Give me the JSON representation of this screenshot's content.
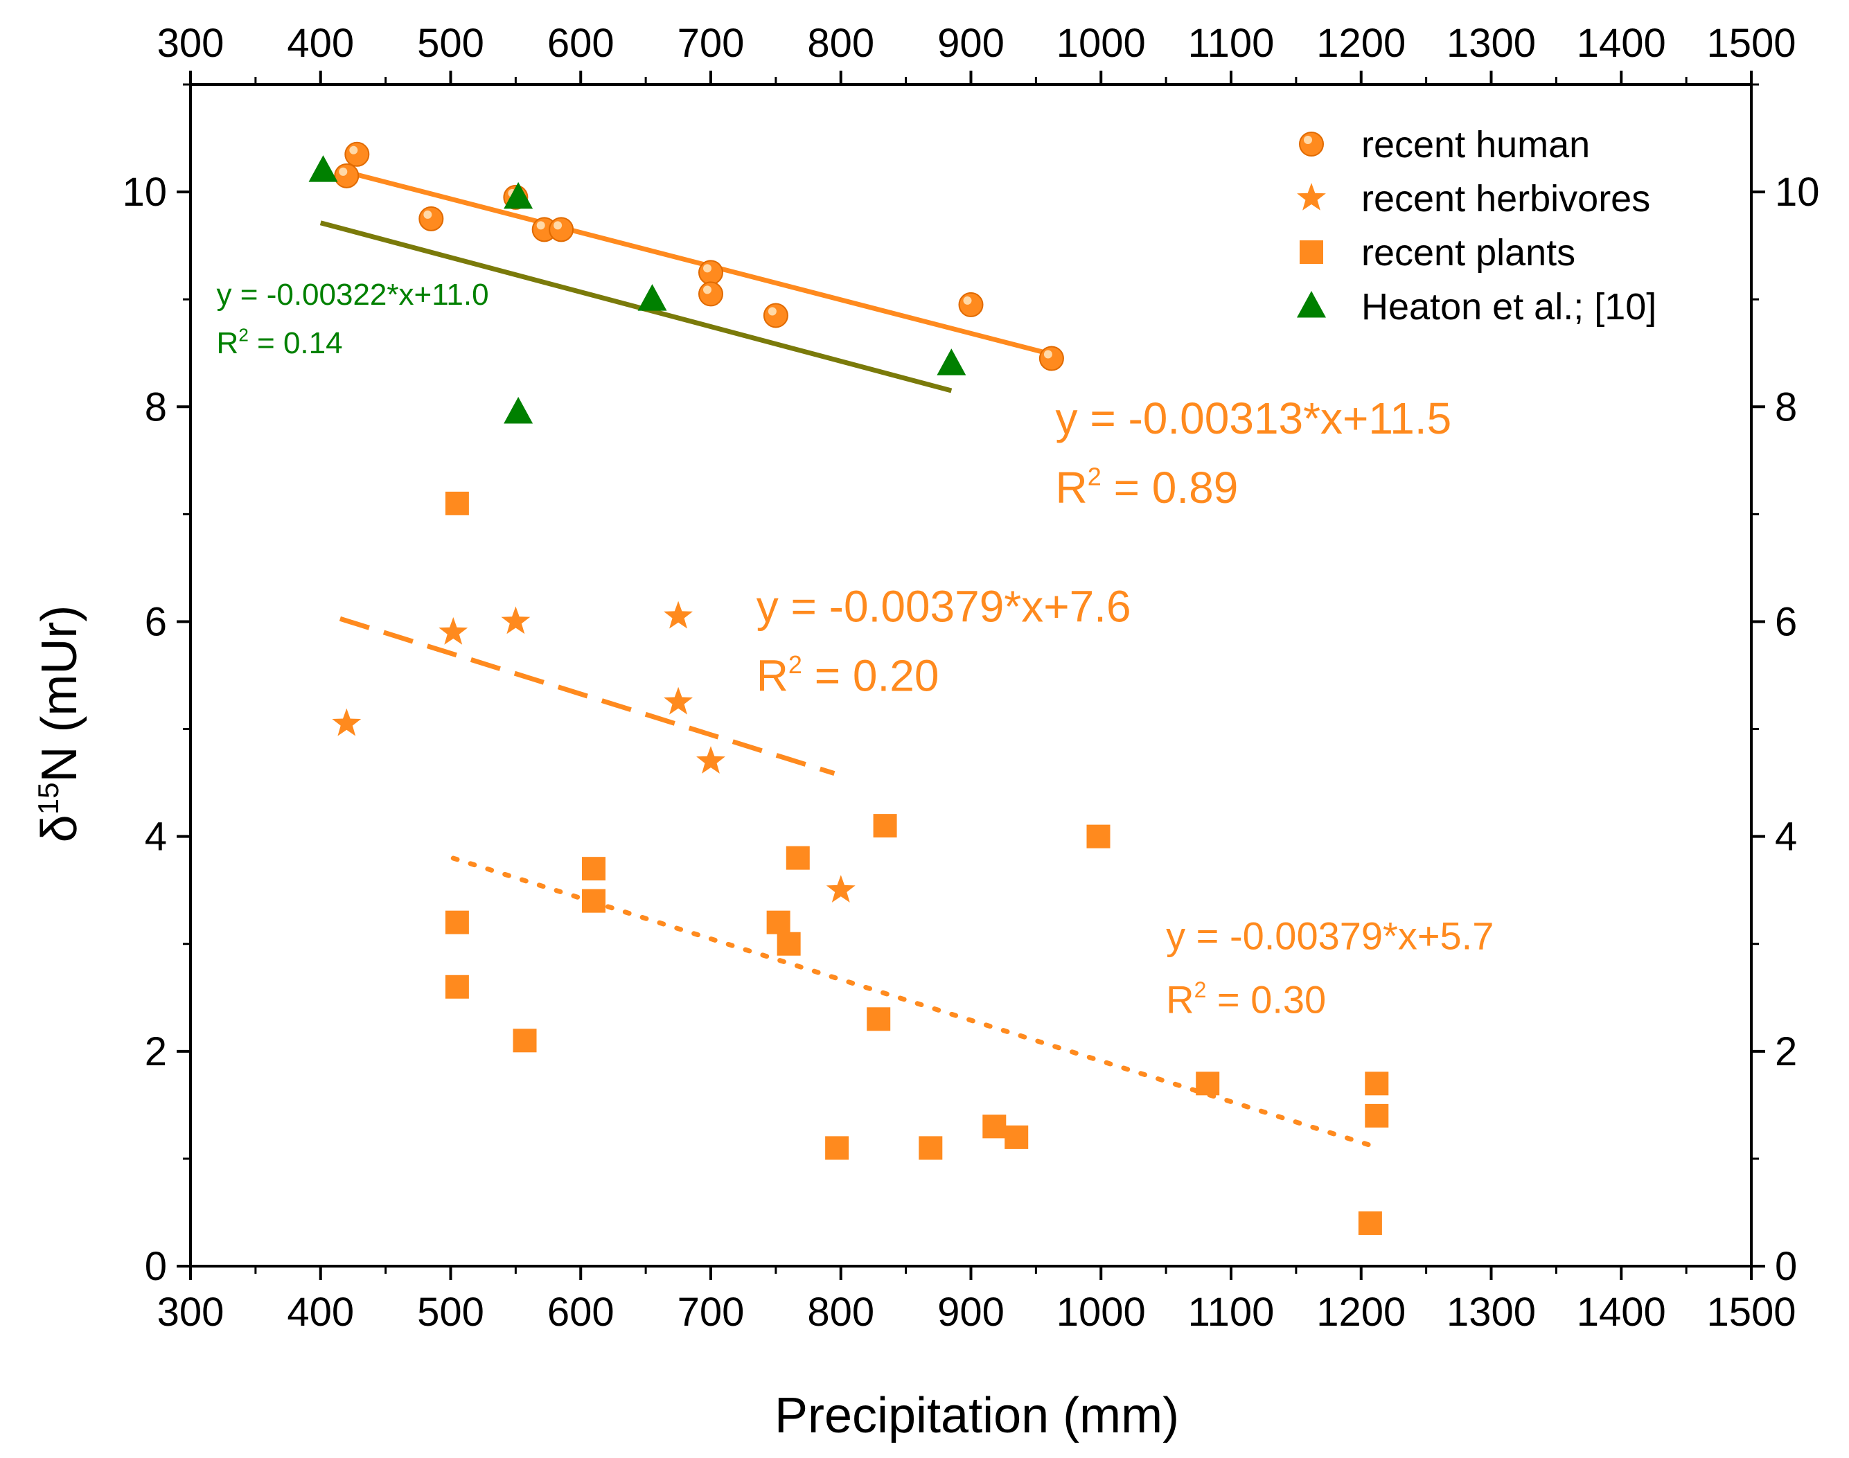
{
  "chart_data": {
    "type": "scatter",
    "xlabel": "Precipitation (mm)",
    "ylabel": {
      "main": "δ",
      "sup": "15",
      "rest": "N (mUr)"
    },
    "xlim": [
      300,
      1500
    ],
    "ylim": [
      0,
      11
    ],
    "x_ticks": [
      300,
      400,
      500,
      600,
      700,
      800,
      900,
      1000,
      1100,
      1200,
      1300,
      1400,
      1500
    ],
    "y_ticks": [
      0,
      2,
      4,
      6,
      8,
      10
    ],
    "legend_position": "top-right",
    "series": [
      {
        "name": "recent human",
        "marker": "circle",
        "color": "#FF8A1E",
        "points": [
          [
            420,
            10.15
          ],
          [
            428,
            10.35
          ],
          [
            485,
            9.75
          ],
          [
            550,
            9.95
          ],
          [
            572,
            9.65
          ],
          [
            585,
            9.65
          ],
          [
            700,
            9.25
          ],
          [
            700,
            9.05
          ],
          [
            750,
            8.85
          ],
          [
            900,
            8.95
          ],
          [
            962,
            8.45
          ]
        ]
      },
      {
        "name": "recent herbivores",
        "marker": "star",
        "color": "#FF8A1E",
        "points": [
          [
            420,
            5.05
          ],
          [
            502,
            5.9
          ],
          [
            550,
            6.0
          ],
          [
            675,
            6.05
          ],
          [
            675,
            5.25
          ],
          [
            700,
            4.7
          ],
          [
            800,
            3.5
          ]
        ]
      },
      {
        "name": "recent plants",
        "marker": "square",
        "color": "#FF8A1E",
        "points": [
          [
            505,
            7.1
          ],
          [
            505,
            3.2
          ],
          [
            505,
            2.6
          ],
          [
            557,
            2.1
          ],
          [
            610,
            3.7
          ],
          [
            610,
            3.4
          ],
          [
            752,
            3.2
          ],
          [
            760,
            3.0
          ],
          [
            767,
            3.8
          ],
          [
            797,
            1.1
          ],
          [
            829,
            2.3
          ],
          [
            834,
            4.1
          ],
          [
            869,
            1.1
          ],
          [
            918,
            1.3
          ],
          [
            935,
            1.2
          ],
          [
            998,
            4.0
          ],
          [
            1082,
            1.7
          ],
          [
            1207,
            0.4
          ],
          [
            1212,
            1.7
          ],
          [
            1212,
            1.4
          ]
        ]
      },
      {
        "name": "Heaton et al.; [10]",
        "marker": "triangle",
        "color": "#008000",
        "points": [
          [
            402,
            10.2
          ],
          [
            552,
            9.95
          ],
          [
            552,
            7.95
          ],
          [
            655,
            9.0
          ],
          [
            885,
            8.4
          ]
        ]
      }
    ],
    "fits": [
      {
        "series": "recent human",
        "style": "solid",
        "color": "#FF8A1E",
        "x_range": [
          420,
          962
        ],
        "slope": -0.00313,
        "intercept": 11.5
      },
      {
        "series": "Heaton et al.; [10]",
        "style": "solid",
        "color": "#7A7A0A",
        "x_range": [
          400,
          885
        ],
        "slope": -0.00322,
        "intercept": 11.0
      },
      {
        "series": "recent herbivores",
        "style": "dashed",
        "color": "#FF8A1E",
        "x_range": [
          415,
          795
        ],
        "slope": -0.00379,
        "intercept": 7.6
      },
      {
        "series": "recent plants",
        "style": "dotted",
        "color": "#FF8A1E",
        "x_range": [
          502,
          1212
        ],
        "slope": -0.00379,
        "intercept": 5.7
      }
    ],
    "annotations": [
      {
        "id": "heaton",
        "color": "#008000",
        "size": "small",
        "equation": "y = -0.00322*x+11.0",
        "r2_prefix": "R",
        "r2_sup": "2",
        "r2_rest": " = 0.14",
        "x": 320,
        "y": 8.95
      },
      {
        "id": "human",
        "color": "#FF8A1E",
        "size": "big",
        "equation": "y = -0.00313*x+11.5",
        "r2_prefix": "R",
        "r2_sup": "2",
        "r2_rest": " = 0.89",
        "x": 965,
        "y": 7.75
      },
      {
        "id": "herbivores",
        "color": "#FF8A1E",
        "size": "big",
        "equation": "y = -0.00379*x+7.6",
        "r2_prefix": "R",
        "r2_sup": "2",
        "r2_rest": " = 0.20",
        "x": 735,
        "y": 6.0
      },
      {
        "id": "plants",
        "color": "#FF8A1E",
        "size": "medium",
        "equation": "y = -0.00379*x+5.7",
        "r2_prefix": "R",
        "r2_sup": "2",
        "r2_rest": " = 0.30",
        "x": 1050,
        "y": 2.95
      }
    ]
  }
}
